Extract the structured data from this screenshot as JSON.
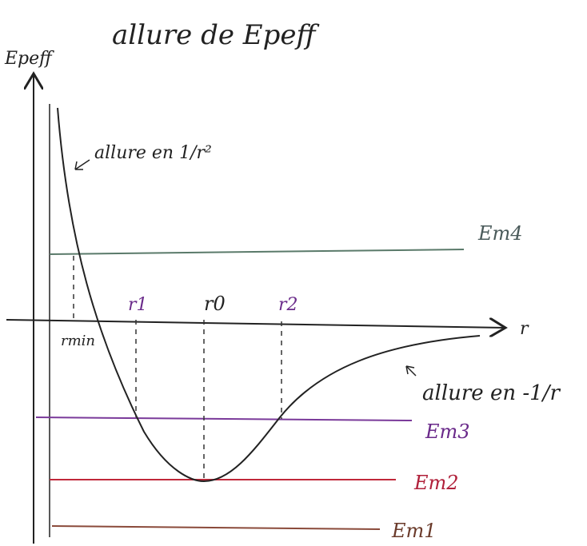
{
  "title": "allure de Epeff",
  "axes": {
    "y_label": "Epeff",
    "x_label": "r"
  },
  "annotations": {
    "near": "allure en 1/r²",
    "far": "allure en -1/r"
  },
  "radii": {
    "rmin": "rmin",
    "r1": "r1",
    "r0": "r0",
    "r2": "r2"
  },
  "energies": {
    "em4": "Em4",
    "em3": "Em3",
    "em2": "Em2",
    "em1": "Em1"
  }
}
